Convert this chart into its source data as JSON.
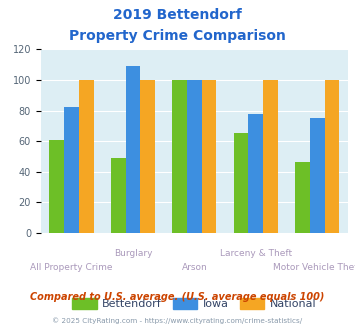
{
  "title_line1": "2019 Bettendorf",
  "title_line2": "Property Crime Comparison",
  "categories": [
    "All Property Crime",
    "Burglary",
    "Arson",
    "Larceny & Theft",
    "Motor Vehicle Theft"
  ],
  "x_labels_row1": [
    "",
    "Burglary",
    "",
    "Larceny & Theft",
    ""
  ],
  "x_labels_row2": [
    "All Property Crime",
    "",
    "Arson",
    "",
    "Motor Vehicle Theft"
  ],
  "bettendorf": [
    61,
    49,
    100,
    65,
    46
  ],
  "iowa": [
    82,
    109,
    100,
    78,
    75
  ],
  "national": [
    100,
    100,
    100,
    100,
    100
  ],
  "color_bettendorf": "#6dbf27",
  "color_iowa": "#3d8fe0",
  "color_national": "#f5a623",
  "color_title": "#2266cc",
  "color_xlabel": "#aa99bb",
  "color_note": "#cc4400",
  "color_copyright": "#8899aa",
  "color_bg": "#ddeef4",
  "color_legend_text": "#334466",
  "ylim": [
    0,
    120
  ],
  "yticks": [
    0,
    20,
    40,
    60,
    80,
    100,
    120
  ],
  "note_text": "Compared to U.S. average. (U.S. average equals 100)",
  "copyright_text": "© 2025 CityRating.com - https://www.cityrating.com/crime-statistics/",
  "legend_labels": [
    "Bettendorf",
    "Iowa",
    "National"
  ],
  "bar_width": 0.24
}
